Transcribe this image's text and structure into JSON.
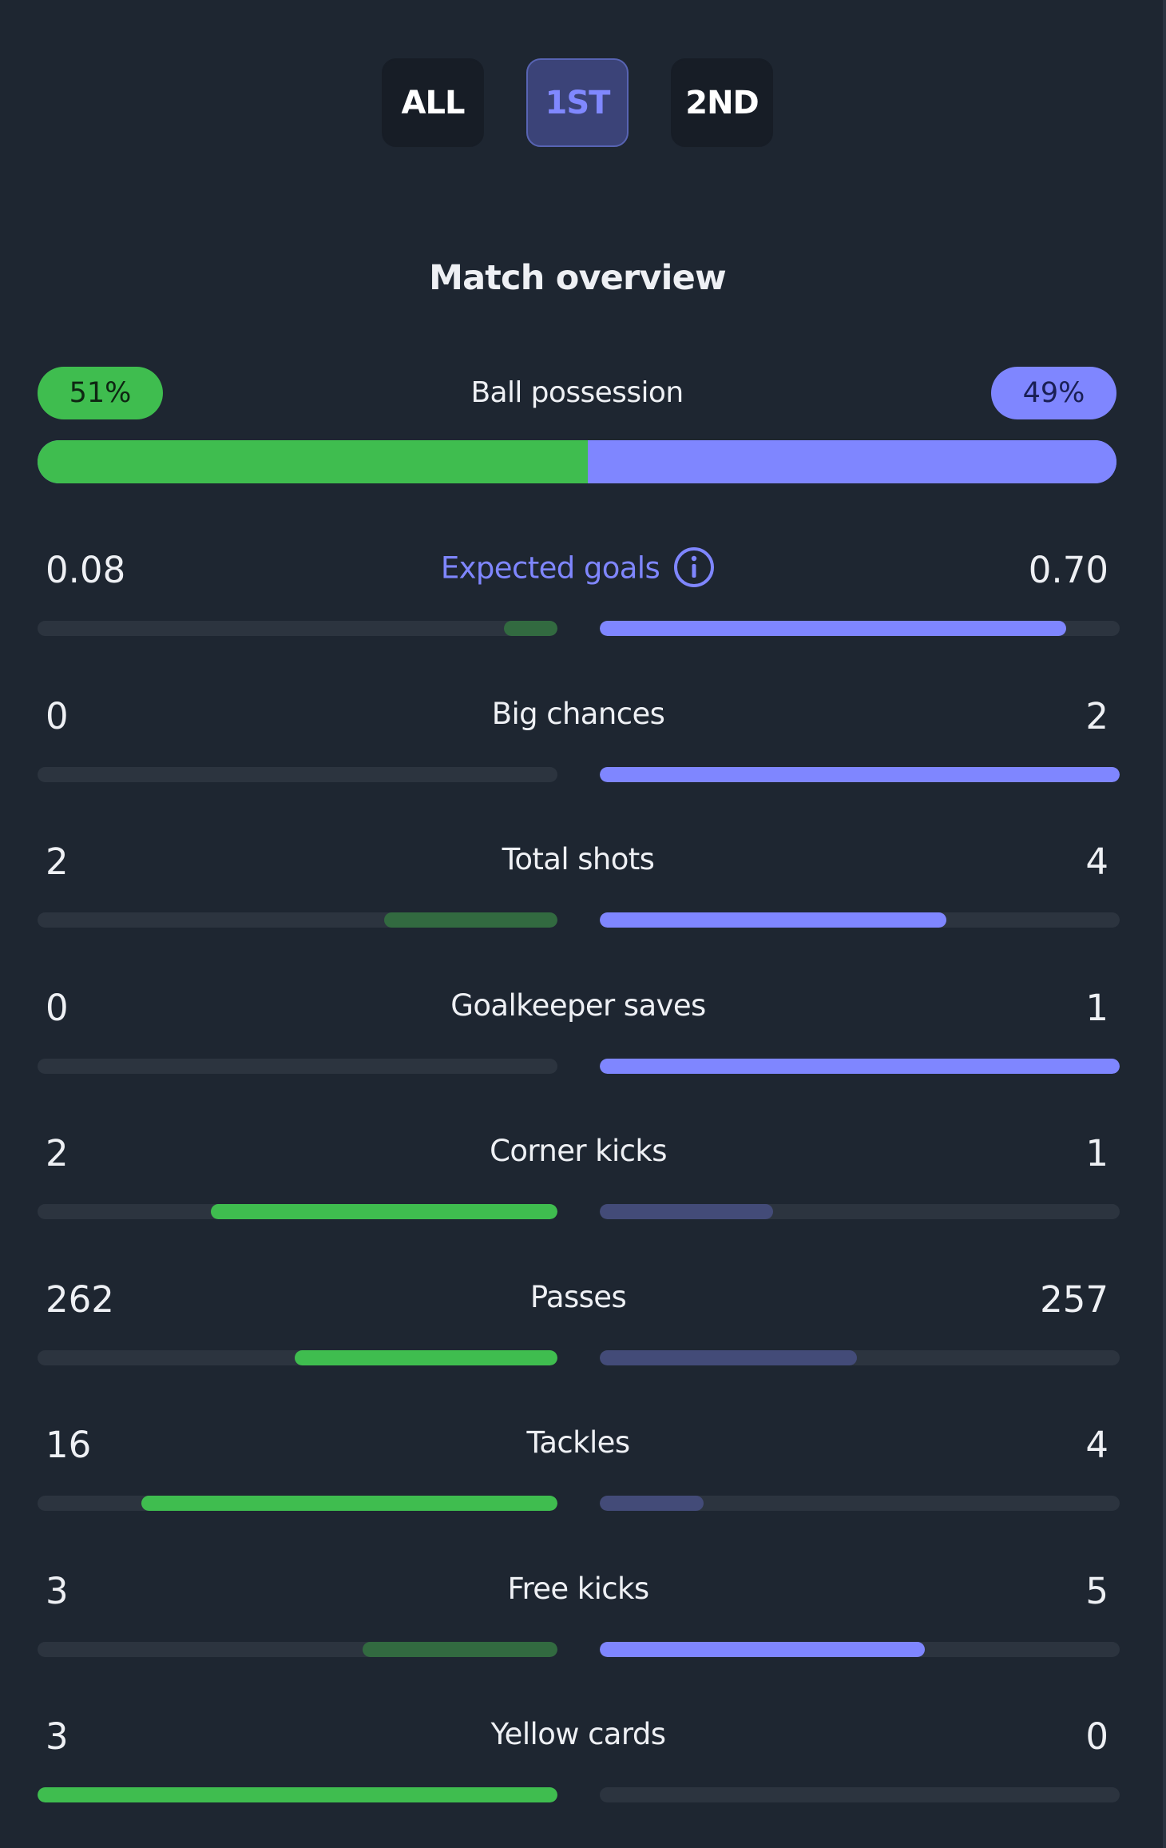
{
  "tabs": [
    {
      "label": "ALL",
      "active": false
    },
    {
      "label": "1ST",
      "active": true
    },
    {
      "label": "2ND",
      "active": false
    }
  ],
  "section_title": "Match overview",
  "colors": {
    "home": "#3fbd4f",
    "away": "#7f86ff",
    "background": "#1e2631"
  },
  "possession": {
    "label": "Ball possession",
    "home": "51%",
    "away": "49%",
    "home_fraction": 0.51
  },
  "stats": [
    {
      "label": "Expected goals",
      "home": "0.08",
      "away": "0.70",
      "home_value": 0.08,
      "away_value": 0.7,
      "icon": "info-icon",
      "accent": true
    },
    {
      "label": "Big chances",
      "home": "0",
      "away": "2",
      "home_value": 0,
      "away_value": 2
    },
    {
      "label": "Total shots",
      "home": "2",
      "away": "4",
      "home_value": 2,
      "away_value": 4
    },
    {
      "label": "Goalkeeper saves",
      "home": "0",
      "away": "1",
      "home_value": 0,
      "away_value": 1
    },
    {
      "label": "Corner kicks",
      "home": "2",
      "away": "1",
      "home_value": 2,
      "away_value": 1
    },
    {
      "label": "Passes",
      "home": "262",
      "away": "257",
      "home_value": 262,
      "away_value": 257
    },
    {
      "label": "Tackles",
      "home": "16",
      "away": "4",
      "home_value": 16,
      "away_value": 4
    },
    {
      "label": "Free kicks",
      "home": "3",
      "away": "5",
      "home_value": 3,
      "away_value": 5
    },
    {
      "label": "Yellow cards",
      "home": "3",
      "away": "0",
      "home_value": 3,
      "away_value": 0
    }
  ]
}
